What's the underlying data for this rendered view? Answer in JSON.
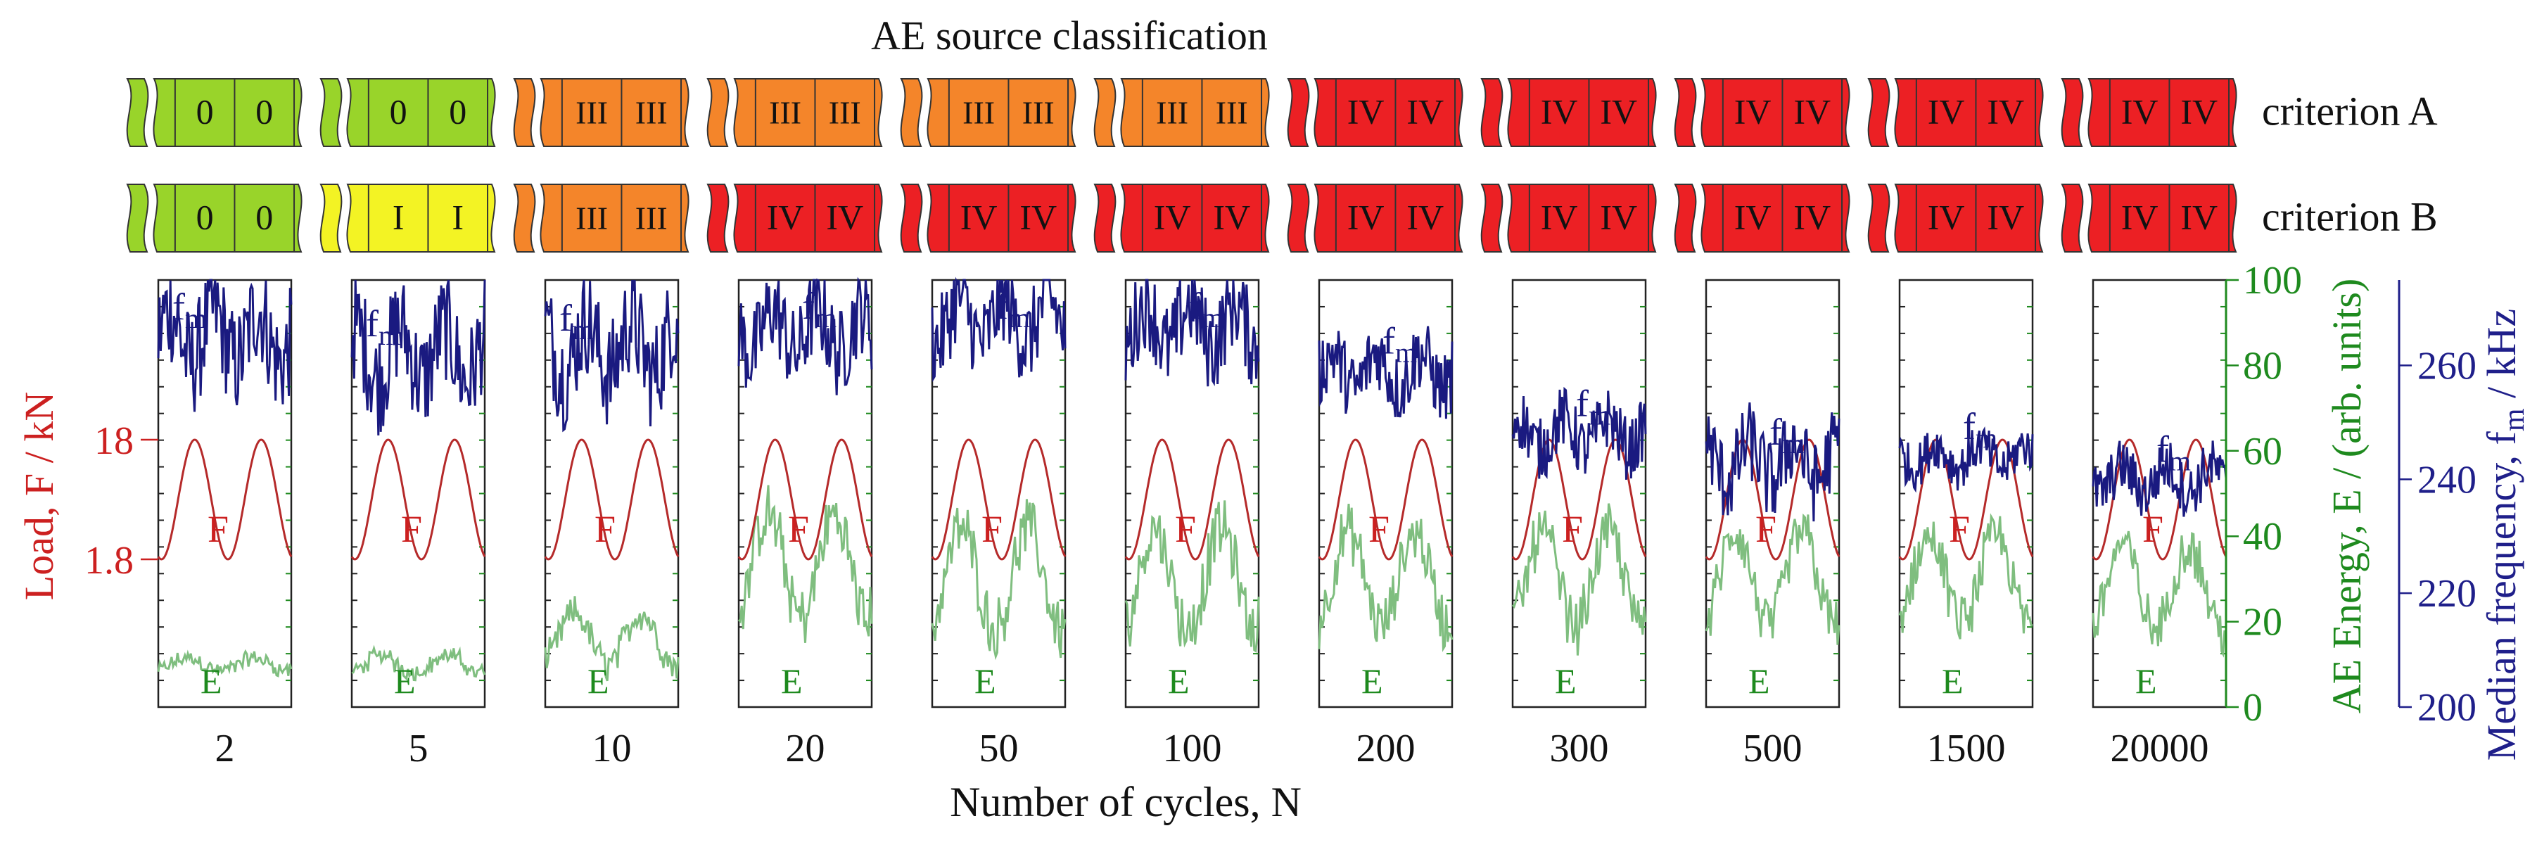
{
  "chart_data": {
    "type": "line",
    "title": "AE source classification",
    "xlabel": "Number of cycles, N",
    "categories": [
      "2",
      "5",
      "10",
      "20",
      "50",
      "100",
      "200",
      "300",
      "500",
      "1500",
      "20000"
    ],
    "criteria": [
      {
        "name": "criterion A",
        "classes": [
          "0",
          "0",
          "III",
          "III",
          "III",
          "III",
          "IV",
          "IV",
          "IV",
          "IV",
          "IV"
        ]
      },
      {
        "name": "criterion B",
        "classes": [
          "0",
          "I",
          "III",
          "IV",
          "IV",
          "IV",
          "IV",
          "IV",
          "IV",
          "IV",
          "IV"
        ]
      }
    ],
    "class_colors": {
      "0": "#99d42a",
      "I": "#f3f324",
      "III": "#f4852a",
      "IV": "#ec2024"
    },
    "axes": {
      "load": {
        "label": "Load, F / kN",
        "ticks": [
          "1.8",
          "18"
        ],
        "color": "#cc2020"
      },
      "energy": {
        "label": "AE Energy, E / (arb. units)",
        "ticks": [
          0,
          20,
          40,
          60,
          80,
          100
        ],
        "ylim": [
          0,
          100
        ],
        "color": "#1e8a1e"
      },
      "frequency": {
        "label": "Median frequency, f",
        "label_sub": "m",
        "label_unit": " / kHz",
        "ticks": [
          200,
          220,
          240,
          260
        ],
        "ylim": [
          200,
          275
        ],
        "color": "#1f1f8a"
      }
    },
    "series": [
      {
        "name": "F",
        "color": "#b52a2a",
        "description": "sinusoidal load, ~2 cycles per window, between 1.8 and 18 kN"
      },
      {
        "name": "f",
        "sub": "m",
        "color": "#1a1a80",
        "mean_khz": [
          265,
          262,
          263,
          266,
          268,
          267,
          259,
          248,
          243,
          244,
          240
        ],
        "amp_khz": [
          12,
          12,
          12,
          10,
          10,
          10,
          8,
          7,
          9,
          5,
          6
        ]
      },
      {
        "name": "E",
        "color": "#7fbe7f",
        "mean": [
          10,
          10,
          16,
          33,
          30,
          30,
          30,
          30,
          30,
          30,
          28
        ],
        "amp": [
          1.5,
          2,
          6,
          12,
          12,
          12,
          11,
          11,
          11,
          10,
          10
        ]
      }
    ],
    "legend": "none"
  }
}
